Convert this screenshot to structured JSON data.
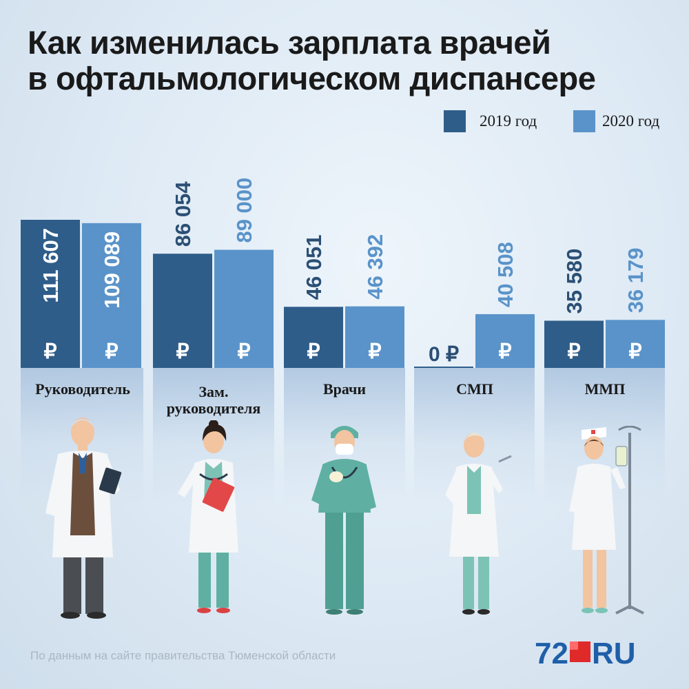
{
  "title_lines": [
    "Как изменилась зарплата врачей",
    "в офтальмологическом диспансере"
  ],
  "legend": [
    {
      "label": "2019 год",
      "color": "#2f5d8a"
    },
    {
      "label": "2020 год",
      "color": "#5a93c9"
    }
  ],
  "currency_symbol": "₽",
  "chart_data": {
    "type": "bar",
    "title": "Как изменилась зарплата врачей в офтальмологическом диспансере",
    "categories": [
      "Руководитель",
      "Зам. руководителя",
      "Врачи",
      "СМП",
      "ММП"
    ],
    "series": [
      {
        "name": "2019 год",
        "values": [
          111607,
          86054,
          46051,
          0,
          35580
        ],
        "labels": [
          "111 607",
          "86 054",
          "46 051",
          "0",
          "35 580"
        ]
      },
      {
        "name": "2020 год",
        "values": [
          109089,
          89000,
          46392,
          40508,
          36179
        ],
        "labels": [
          "109 089",
          "89 000",
          "46 392",
          "40 508",
          "36 179"
        ]
      }
    ],
    "ylim": [
      0,
      111607
    ],
    "grid": false,
    "legend_position": "top-right"
  },
  "category_label_lines": [
    [
      "Руководитель"
    ],
    [
      "Зам.",
      "руководителя"
    ],
    [
      "Врачи"
    ],
    [
      "СМП"
    ],
    [
      "ММП"
    ]
  ],
  "figures": [
    "doctor-head-icon",
    "deputy-doctor-icon",
    "surgeon-icon",
    "nurse-senior-icon",
    "nurse-junior-icon"
  ],
  "source": "По данным на сайте правительства Тюменской области",
  "logo": {
    "number": "72",
    "suffix": "RU"
  }
}
